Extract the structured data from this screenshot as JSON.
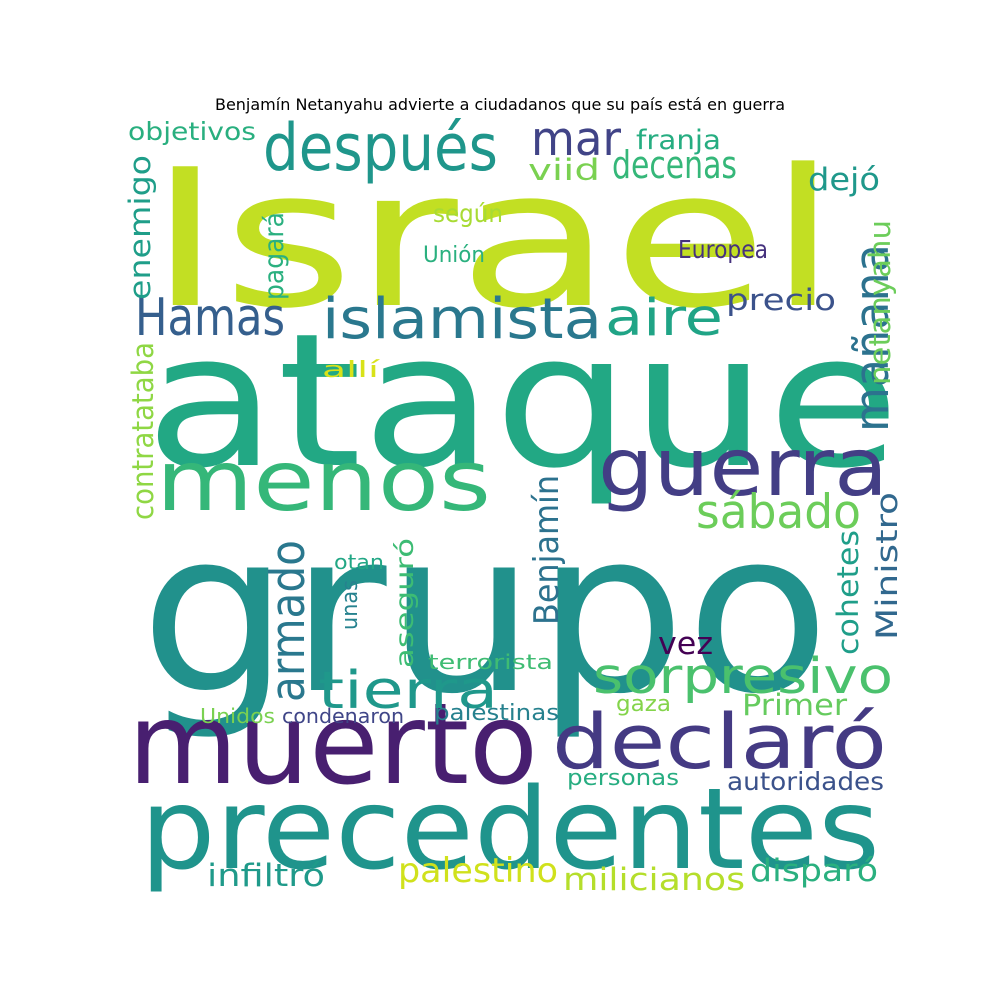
{
  "title": "Benjamín Netanyahu advierte a ciudadanos que su país está en guerra",
  "words": [
    {
      "text": "grupo",
      "color": "#21918c",
      "rotate": false
    },
    {
      "text": "ataque",
      "color": "#22a884",
      "rotate": false
    },
    {
      "text": "Israel",
      "color": "#c2df23",
      "rotate": false
    },
    {
      "text": "precedentes",
      "color": "#1f948c",
      "rotate": false
    },
    {
      "text": "muerto",
      "color": "#481f70",
      "rotate": false
    },
    {
      "text": "menos",
      "color": "#35b779",
      "rotate": false
    },
    {
      "text": "declaró",
      "color": "#443a83",
      "rotate": false
    },
    {
      "text": "guerra",
      "color": "#433e85",
      "rotate": false
    },
    {
      "text": "después",
      "color": "#1f968b",
      "rotate": false
    },
    {
      "text": "islamista",
      "color": "#2a788e",
      "rotate": false
    },
    {
      "text": "Hamas",
      "color": "#355f8d",
      "rotate": false
    },
    {
      "text": "tierra",
      "color": "#1f988b",
      "rotate": false
    },
    {
      "text": "sorpresivo",
      "color": "#4ac16d",
      "rotate": false
    },
    {
      "text": "mar",
      "color": "#414487",
      "rotate": false
    },
    {
      "text": "aire",
      "color": "#20a486",
      "rotate": false
    },
    {
      "text": "mañana",
      "color": "#2c728e",
      "rotate": true
    },
    {
      "text": "sábado",
      "color": "#6ccd5a",
      "rotate": false
    },
    {
      "text": "armado",
      "color": "#2a788e",
      "rotate": true
    },
    {
      "text": "decenas",
      "color": "#35b779",
      "rotate": false
    },
    {
      "text": "viid",
      "color": "#7ad151",
      "rotate": false
    },
    {
      "text": "precio",
      "color": "#3b528b",
      "rotate": false
    },
    {
      "text": "Benjamín",
      "color": "#2c728e",
      "rotate": true
    },
    {
      "text": "Ministro",
      "color": "#31688e",
      "rotate": true
    },
    {
      "text": "cohetes",
      "color": "#1f9e89",
      "rotate": true
    },
    {
      "text": "netanyahu",
      "color": "#6ccd5a",
      "rotate": true
    },
    {
      "text": "contratataba",
      "color": "#8fd744",
      "rotate": true
    },
    {
      "text": "enemigo",
      "color": "#1f9e89",
      "rotate": true
    },
    {
      "text": "pagará",
      "color": "#2ab07f",
      "rotate": true
    },
    {
      "text": "aseguró",
      "color": "#3dbc74",
      "rotate": true
    },
    {
      "text": "unas",
      "color": "#26828e",
      "rotate": true
    },
    {
      "text": "vez",
      "color": "#440154",
      "rotate": false
    },
    {
      "text": "Primer",
      "color": "#65cb5e",
      "rotate": false
    },
    {
      "text": "dejó",
      "color": "#1f988b",
      "rotate": false
    },
    {
      "text": "franja",
      "color": "#26ad81",
      "rotate": false
    },
    {
      "text": "objetivos",
      "color": "#29af7f",
      "rotate": false
    },
    {
      "text": "según",
      "color": "#a8db34",
      "rotate": false
    },
    {
      "text": "Unión",
      "color": "#2ab07f",
      "rotate": false
    },
    {
      "text": "Europea",
      "color": "#46327e",
      "rotate": false
    },
    {
      "text": "allí",
      "color": "#d8e219",
      "rotate": false
    },
    {
      "text": "otan",
      "color": "#22a785",
      "rotate": false
    },
    {
      "text": "terrorista",
      "color": "#3fbc73",
      "rotate": false
    },
    {
      "text": "Unidos",
      "color": "#7ad151",
      "rotate": false
    },
    {
      "text": "condenaron",
      "color": "#404688",
      "rotate": false
    },
    {
      "text": "palestinas",
      "color": "#26818e",
      "rotate": false
    },
    {
      "text": "gaza",
      "color": "#84d44b",
      "rotate": false
    },
    {
      "text": "personas",
      "color": "#27ad81",
      "rotate": false
    },
    {
      "text": "autoridades",
      "color": "#3b528b",
      "rotate": false
    },
    {
      "text": "infiltró",
      "color": "#1f9a8a",
      "rotate": false
    },
    {
      "text": "palestino",
      "color": "#d0e11c",
      "rotate": false
    },
    {
      "text": "milicianos",
      "color": "#b5de2b",
      "rotate": false
    },
    {
      "text": "disparó",
      "color": "#2ab07f",
      "rotate": false
    }
  ]
}
